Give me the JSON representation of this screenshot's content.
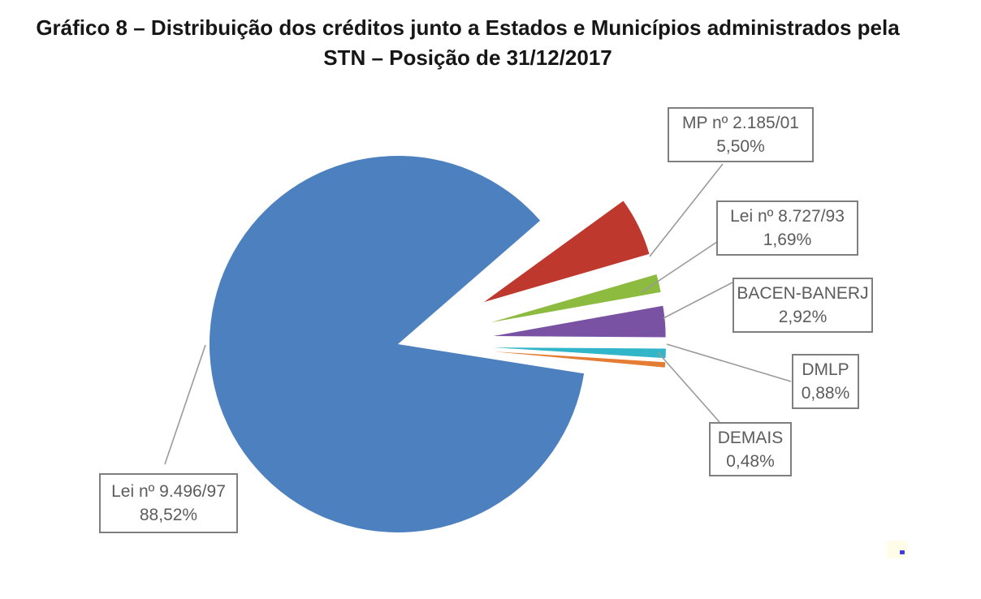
{
  "title": {
    "line1": "Gráfico 8 – Distribuição dos créditos junto a Estados e Municípios administrados pela",
    "line2": "STN – Posição de 31/12/2017"
  },
  "chart_data": {
    "type": "pie",
    "title": "Gráfico 8 – Distribuição dos créditos junto a Estados e Municípios administrados pela STN – Posição de 31/12/2017",
    "categories": [
      "MP nº 2.185/01",
      "Lei nº 8.727/93",
      "BACEN-BANERJ",
      "DMLP",
      "DEMAIS",
      "Lei nº 9.496/97"
    ],
    "values": [
      5.5,
      1.69,
      2.92,
      0.88,
      0.48,
      88.52
    ],
    "value_labels": [
      "5,50%",
      "1,69%",
      "2,92%",
      "0,88%",
      "0,48%",
      "88,52%"
    ],
    "colors": [
      "#BE382D",
      "#8DBB3F",
      "#7A52A3",
      "#30B5C9",
      "#E57C33",
      "#4C80BE"
    ],
    "slice_ids": [
      "mp-2185-01",
      "lei-8727-93",
      "bacen-banerj",
      "dmlp",
      "demais",
      "lei-9496-97"
    ],
    "exploded": [
      true,
      true,
      true,
      true,
      true,
      false
    ],
    "main_slice_index": 5,
    "legend_position": "boxed callouts with leader lines",
    "grid": false
  }
}
